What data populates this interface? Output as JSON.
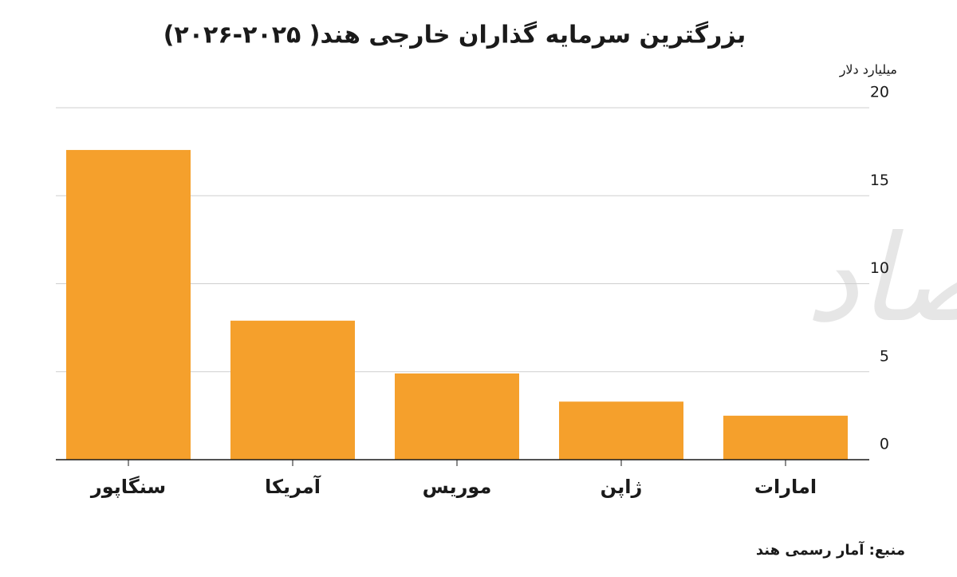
{
  "chart_data": {
    "type": "bar",
    "title": "بزرگترین سرمایه گذاران خارجی هند( ۲۰۲۵-۲۰۲۶)",
    "y_label": "میلیارد دلار",
    "source": "منبع: آمار رسمی هند",
    "watermark": "دنیای اقتصاد",
    "categories": [
      "سنگاپور",
      "آمریکا",
      "موریس",
      "ژاپن",
      "امارات"
    ],
    "values": [
      17.6,
      7.9,
      4.9,
      3.3,
      2.5
    ],
    "color": "#f5a02c",
    "ylim": [
      0,
      20
    ],
    "yticks": [
      0,
      5,
      10,
      15,
      20
    ],
    "grid": true
  }
}
